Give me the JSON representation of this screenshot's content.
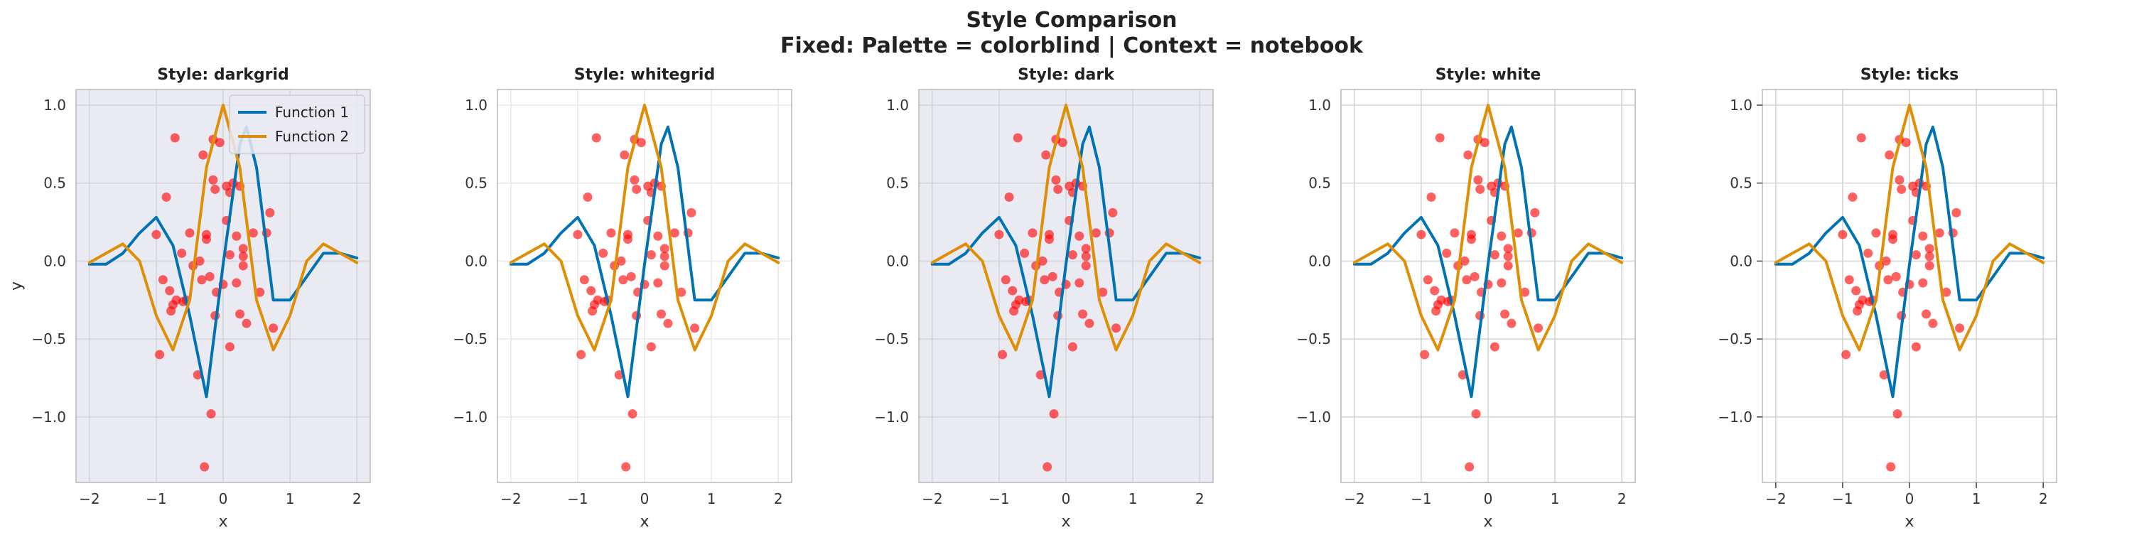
{
  "figure": {
    "title_line1": "Style Comparison",
    "title_line2": "Fixed: Palette = colorblind | Context = notebook"
  },
  "colors": {
    "function_1": "#0173b2",
    "function_2": "#de8f05",
    "scatter": "#ff0000"
  },
  "chart_data": [
    {
      "type": "line+scatter",
      "title": "Style: darkgrid",
      "style": "darkgrid",
      "xlabel": "x",
      "ylabel": "y",
      "xlim": [
        -2.2,
        2.2
      ],
      "ylim": [
        -1.42,
        1.1
      ],
      "xticks": [
        "−2",
        "−1",
        "0",
        "1",
        "2"
      ],
      "yticks": [
        "−1.0",
        "−0.5",
        "0.0",
        "0.5",
        "1.0"
      ],
      "grid": "on",
      "legend": "top-right",
      "series": [
        {
          "name": "Function 1",
          "kind": "line",
          "x": [
            -2,
            -1.75,
            -1.5,
            -1.25,
            -1,
            -0.75,
            -0.5,
            -0.25,
            0,
            0.25,
            0.35,
            0.5,
            0.75,
            1,
            1.25,
            1.5,
            1.75,
            2
          ],
          "y": [
            -0.02,
            -0.02,
            0.05,
            0.18,
            0.28,
            0.1,
            -0.35,
            -0.87,
            -0.02,
            0.75,
            0.86,
            0.6,
            -0.25,
            -0.25,
            -0.1,
            0.05,
            0.05,
            0.02
          ]
        },
        {
          "name": "Function 2",
          "kind": "line",
          "x": [
            -2,
            -1.75,
            -1.5,
            -1.25,
            -1,
            -0.75,
            -0.5,
            -0.25,
            0,
            0.25,
            0.5,
            0.75,
            1,
            1.25,
            1.5,
            1.75,
            2
          ],
          "y": [
            -0.01,
            0.05,
            0.11,
            0.0,
            -0.35,
            -0.57,
            -0.25,
            0.6,
            1.0,
            0.6,
            -0.25,
            -0.57,
            -0.35,
            0.0,
            0.11,
            0.05,
            -0.01
          ]
        }
      ],
      "scatter_points": [
        [
          -1.0,
          0.17
        ],
        [
          -0.95,
          -0.6
        ],
        [
          -0.9,
          -0.12
        ],
        [
          -0.85,
          0.41
        ],
        [
          -0.8,
          -0.19
        ],
        [
          -0.78,
          -0.32
        ],
        [
          -0.75,
          -0.28
        ],
        [
          -0.72,
          0.79
        ],
        [
          -0.7,
          -0.25
        ],
        [
          -0.62,
          0.05
        ],
        [
          -0.6,
          -0.26
        ],
        [
          -0.55,
          -0.25
        ],
        [
          -0.5,
          0.18
        ],
        [
          -0.45,
          -0.03
        ],
        [
          -0.38,
          -0.73
        ],
        [
          -0.35,
          0.0
        ],
        [
          -0.32,
          -0.12
        ],
        [
          -0.3,
          0.68
        ],
        [
          -0.28,
          -1.32
        ],
        [
          -0.25,
          0.17
        ],
        [
          -0.25,
          0.14
        ],
        [
          -0.2,
          -0.1
        ],
        [
          -0.18,
          -0.98
        ],
        [
          -0.15,
          0.78
        ],
        [
          -0.15,
          0.52
        ],
        [
          -0.12,
          0.46
        ],
        [
          -0.12,
          -0.35
        ],
        [
          -0.1,
          -0.2
        ],
        [
          -0.05,
          0.76
        ],
        [
          0.0,
          -0.15
        ],
        [
          0.05,
          0.48
        ],
        [
          0.05,
          0.26
        ],
        [
          0.1,
          0.44
        ],
        [
          0.1,
          -0.55
        ],
        [
          0.1,
          0.04
        ],
        [
          0.15,
          0.5
        ],
        [
          0.2,
          -0.14
        ],
        [
          0.2,
          0.16
        ],
        [
          0.25,
          0.48
        ],
        [
          0.25,
          -0.34
        ],
        [
          0.3,
          0.08
        ],
        [
          0.3,
          0.03
        ],
        [
          0.35,
          -0.4
        ],
        [
          0.45,
          0.18
        ],
        [
          0.55,
          -0.2
        ],
        [
          0.65,
          0.18
        ],
        [
          0.75,
          -0.43
        ],
        [
          0.7,
          0.31
        ],
        [
          0.3,
          -0.03
        ]
      ]
    },
    {
      "type": "line+scatter",
      "title": "Style: whitegrid",
      "style": "whitegrid",
      "xlabel": "x",
      "ylabel": "",
      "xlim": [
        -2.2,
        2.2
      ],
      "ylim": [
        -1.42,
        1.1
      ],
      "xticks": [
        "−2",
        "−1",
        "0",
        "1",
        "2"
      ],
      "yticks": [
        "−1.0",
        "−0.5",
        "0.0",
        "0.5",
        "1.0"
      ],
      "grid": "on",
      "legend": "none",
      "same_data_as": 0
    },
    {
      "type": "line+scatter",
      "title": "Style: dark",
      "style": "dark",
      "xlabel": "x",
      "ylabel": "",
      "xlim": [
        -2.2,
        2.2
      ],
      "ylim": [
        -1.42,
        1.1
      ],
      "xticks": [
        "−2",
        "−1",
        "0",
        "1",
        "2"
      ],
      "yticks": [
        "−1.0",
        "−0.5",
        "0.0",
        "0.5",
        "1.0"
      ],
      "grid": "on",
      "legend": "none",
      "same_data_as": 0
    },
    {
      "type": "line+scatter",
      "title": "Style: white",
      "style": "white",
      "xlabel": "x",
      "ylabel": "",
      "xlim": [
        -2.2,
        2.2
      ],
      "ylim": [
        -1.42,
        1.1
      ],
      "xticks": [
        "−2",
        "−1",
        "0",
        "1",
        "2"
      ],
      "yticks": [
        "−1.0",
        "−0.5",
        "0.0",
        "0.5",
        "1.0"
      ],
      "grid": "on",
      "legend": "none",
      "same_data_as": 0
    },
    {
      "type": "line+scatter",
      "title": "Style: ticks",
      "style": "ticks",
      "xlabel": "x",
      "ylabel": "",
      "xlim": [
        -2.2,
        2.2
      ],
      "ylim": [
        -1.42,
        1.1
      ],
      "xticks": [
        "−2",
        "−1",
        "0",
        "1",
        "2"
      ],
      "yticks": [
        "−1.0",
        "−0.5",
        "0.0",
        "0.5",
        "1.0"
      ],
      "grid": "on",
      "legend": "none",
      "same_data_as": 0
    }
  ]
}
